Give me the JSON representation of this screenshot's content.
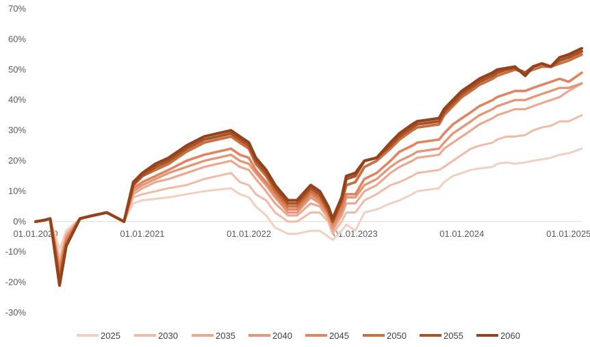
{
  "chart_data": {
    "type": "line",
    "title": "",
    "xlabel": "",
    "ylabel": "",
    "y_tick_labels": [
      "70%",
      "60%",
      "50%",
      "40%",
      "30%",
      "20%",
      "10%",
      "0%",
      "-10%",
      "-20%",
      "-30%"
    ],
    "y_tick_values": [
      70,
      60,
      50,
      40,
      30,
      20,
      10,
      0,
      -10,
      -20,
      -30
    ],
    "x_tick_labels": [
      "01.01.2020",
      "01.01.2021",
      "01.01.2022",
      "01.01.2023",
      "01.01.2024",
      "01.01.2025"
    ],
    "x_tick_values": [
      "2020-01-01",
      "2021-01-01",
      "2022-01-01",
      "2023-01-01",
      "2024-01-01",
      "2025-01-01"
    ],
    "ylim": [
      -30,
      70
    ],
    "xlim": [
      "2020-01-01",
      "2025-02-15"
    ],
    "grid": false,
    "legend_position": "bottom",
    "x": [
      "2020-01-01",
      "2020-02-01",
      "2020-02-20",
      "2020-03-23",
      "2020-04-15",
      "2020-06-01",
      "2020-07-15",
      "2020-09-01",
      "2020-10-30",
      "2020-12-01",
      "2021-01-01",
      "2021-02-15",
      "2021-04-01",
      "2021-06-01",
      "2021-08-01",
      "2021-09-15",
      "2021-11-01",
      "2021-12-01",
      "2022-01-01",
      "2022-01-25",
      "2022-03-01",
      "2022-04-01",
      "2022-05-15",
      "2022-06-15",
      "2022-08-01",
      "2022-09-01",
      "2022-09-30",
      "2022-10-15",
      "2022-11-15",
      "2022-12-01",
      "2023-01-01",
      "2023-02-01",
      "2023-03-15",
      "2023-05-01",
      "2023-06-01",
      "2023-07-15",
      "2023-08-01",
      "2023-10-15",
      "2023-11-01",
      "2023-12-01",
      "2024-01-01",
      "2024-02-01",
      "2024-03-01",
      "2024-04-15",
      "2024-05-01",
      "2024-06-01",
      "2024-07-01",
      "2024-08-05",
      "2024-09-01",
      "2024-10-01",
      "2024-11-01",
      "2024-12-01",
      "2025-01-01",
      "2025-02-15"
    ],
    "series": [
      {
        "name": "2025",
        "color": "#f3cfc0",
        "values": [
          0,
          0.5,
          1,
          -9,
          -3,
          1,
          2,
          3,
          0,
          6,
          7,
          7.5,
          8,
          9,
          10,
          10.5,
          11,
          9,
          8,
          5,
          2,
          -2,
          -4,
          -4,
          -3,
          -3,
          -5,
          -6,
          -3,
          -1,
          -3,
          3,
          4,
          6,
          7,
          9,
          10,
          11,
          13,
          15,
          16,
          17,
          17.5,
          18,
          19,
          19.5,
          19,
          19.5,
          20,
          20.5,
          21,
          22,
          22.5,
          24
        ]
      },
      {
        "name": "2030",
        "color": "#efbba7",
        "values": [
          0,
          0.5,
          1,
          -12,
          -4,
          1,
          2,
          3,
          0,
          8,
          9,
          10,
          11,
          12,
          14,
          15,
          16,
          13,
          12,
          9,
          7,
          3,
          0,
          0,
          3,
          3,
          0,
          -4,
          0,
          3,
          3,
          7,
          9,
          12,
          13,
          15,
          16,
          17,
          18,
          20,
          22,
          24,
          25,
          26,
          27,
          28,
          28,
          28.5,
          30,
          31,
          31.5,
          33,
          33,
          35
        ]
      },
      {
        "name": "2035",
        "color": "#eaa88f",
        "values": [
          0,
          0.5,
          1,
          -14,
          -5,
          1,
          2,
          3,
          0,
          9,
          11,
          13,
          14,
          16,
          18,
          19,
          20,
          18,
          17,
          14,
          10,
          6,
          2,
          2,
          6,
          5,
          1,
          -3,
          2,
          6,
          6,
          10,
          12,
          16,
          18,
          20,
          21,
          22,
          24,
          26,
          28,
          30,
          32,
          34,
          35,
          36,
          37,
          37,
          38,
          39,
          40,
          41,
          43,
          45.5
        ]
      },
      {
        "name": "2040",
        "color": "#e59676",
        "values": [
          0,
          0.5,
          1,
          -15,
          -5,
          1,
          2,
          3,
          0,
          10,
          12,
          14,
          16,
          18,
          20,
          21,
          22,
          20,
          19,
          16,
          12,
          8,
          3,
          3,
          8,
          6,
          2,
          -2,
          3,
          8,
          8,
          12,
          14,
          18,
          20,
          22,
          23,
          24,
          26,
          29,
          31,
          33,
          35,
          37,
          38,
          39,
          40,
          40,
          41,
          42,
          43,
          44,
          44,
          45.5
        ]
      },
      {
        "name": "2045",
        "color": "#df8461",
        "values": [
          0,
          0.5,
          1,
          -16,
          -6,
          1,
          2,
          3,
          0,
          11,
          13,
          15,
          17,
          20,
          22,
          23,
          24,
          22,
          21,
          17,
          13,
          9,
          4,
          4,
          9,
          7,
          3,
          -1,
          4,
          9,
          9,
          14,
          16,
          20,
          23,
          25,
          26,
          27,
          29,
          32,
          34,
          36,
          38,
          40,
          41,
          42,
          43,
          43,
          44,
          45,
          46,
          47,
          46,
          49
        ]
      },
      {
        "name": "2050",
        "color": "#c8703f",
        "values": [
          0,
          0.5,
          1,
          -18,
          -7,
          1,
          2,
          3,
          0,
          12,
          15,
          17,
          19,
          23,
          26,
          27,
          28,
          26,
          24,
          19,
          15,
          10,
          5,
          5,
          10,
          8,
          3,
          0,
          6,
          12,
          13,
          18,
          20,
          24,
          27,
          30,
          31,
          32,
          35,
          38,
          41,
          43,
          45,
          47,
          48,
          49,
          50,
          49,
          50,
          51,
          51,
          52,
          53,
          55
        ]
      },
      {
        "name": "2055",
        "color": "#a85228",
        "values": [
          0,
          0.5,
          1,
          -20,
          -8,
          1,
          2,
          3,
          0,
          12,
          15,
          18,
          20,
          24,
          27,
          28,
          29,
          27,
          25,
          20,
          16,
          11,
          6,
          6,
          11,
          9,
          4,
          0,
          7,
          14,
          15,
          20,
          21,
          25,
          28,
          31,
          32,
          33,
          36,
          39,
          42,
          44,
          46,
          48,
          49,
          50,
          50.5,
          49,
          51,
          52,
          51,
          53,
          54,
          56
        ]
      },
      {
        "name": "2060",
        "color": "#94421c",
        "values": [
          0,
          0.5,
          1,
          -21,
          -8,
          1,
          2,
          3,
          0,
          13,
          16,
          19,
          21,
          25,
          28,
          29,
          30,
          28,
          26,
          21,
          17,
          12,
          7,
          7,
          12,
          10,
          5,
          1,
          8,
          15,
          16,
          20,
          21,
          26,
          29,
          32,
          33,
          34,
          37,
          40,
          43,
          45,
          47,
          49,
          50,
          50.5,
          51,
          48,
          51,
          52,
          51,
          54,
          55,
          57
        ]
      }
    ]
  }
}
